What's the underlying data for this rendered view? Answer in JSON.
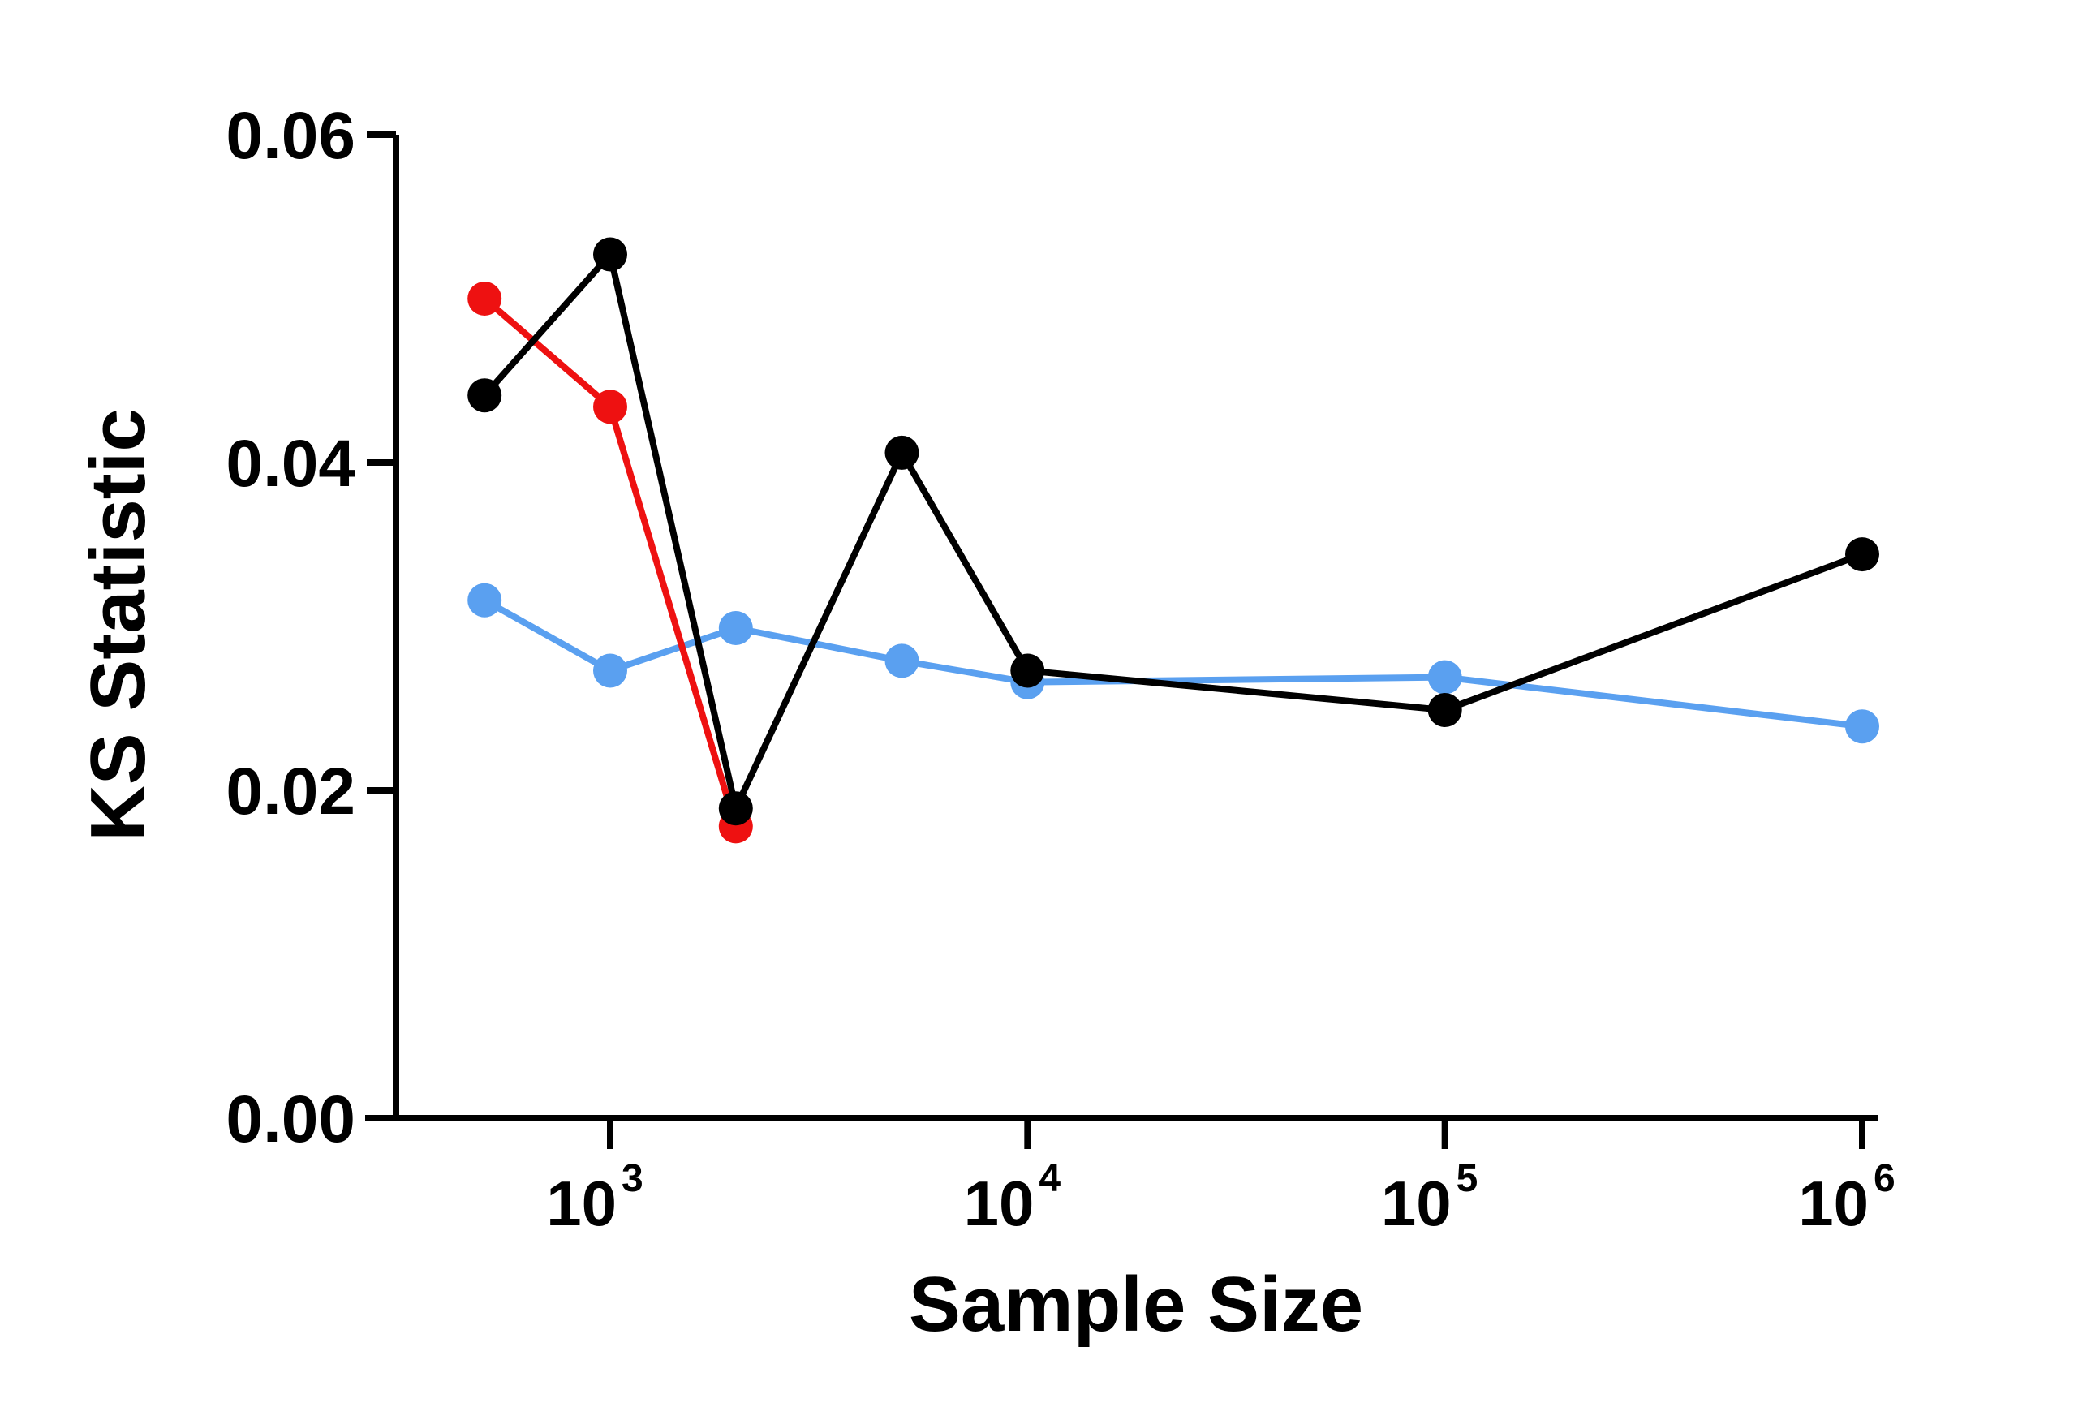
{
  "chart_data": {
    "type": "line",
    "title": "",
    "xlabel": "Sample Size",
    "ylabel": "KS Statistic",
    "xscale": "log",
    "xlim": [
      300,
      1000000
    ],
    "ylim": [
      0,
      0.06
    ],
    "yticks": [
      0.0,
      0.02,
      0.04,
      0.06
    ],
    "ytick_labels": [
      "0.00",
      "0.02",
      "0.04",
      "0.06"
    ],
    "xticks": [
      1000,
      10000,
      100000,
      1000000
    ],
    "xtick_labels": [
      {
        "base": "10",
        "exp": "3"
      },
      {
        "base": "10",
        "exp": "4"
      },
      {
        "base": "10",
        "exp": "5"
      },
      {
        "base": "10",
        "exp": "6"
      }
    ],
    "grid": false,
    "legend": "none",
    "series": [
      {
        "name": "blue",
        "color": "#5aa0f0",
        "x": [
          500,
          1000,
          2000,
          5000,
          10000,
          100000,
          1000000
        ],
        "y": [
          0.0316,
          0.0273,
          0.0299,
          0.0279,
          0.0266,
          0.0269,
          0.0239
        ]
      },
      {
        "name": "red",
        "color": "#ee1111",
        "x": [
          500,
          1000,
          2000
        ],
        "y": [
          0.05,
          0.0434,
          0.0178
        ]
      },
      {
        "name": "black",
        "color": "#000000",
        "x": [
          500,
          1000,
          2000,
          5000,
          10000,
          100000,
          1000000
        ],
        "y": [
          0.0441,
          0.0527,
          0.0189,
          0.0406,
          0.0273,
          0.0249,
          0.0344
        ]
      }
    ]
  }
}
